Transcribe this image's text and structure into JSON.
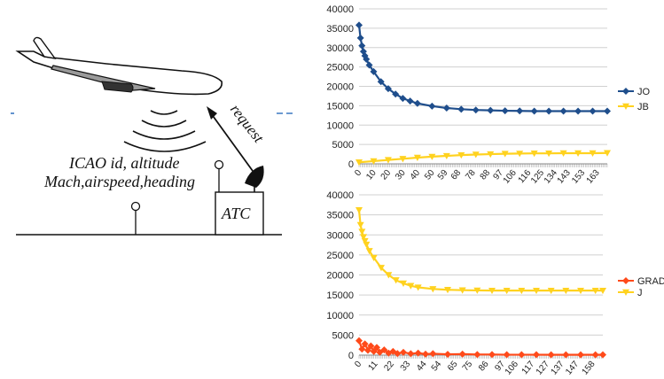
{
  "diagram": {
    "request_label": "request",
    "info_line1": "ICAO id, altitude",
    "info_line2": "Mach,airspeed,heading",
    "atc_label": "ATC"
  },
  "colors": {
    "jo": "#1f4e8c",
    "jb": "#ffd21f",
    "grad": "#ff4a1a",
    "j": "#ffd21f",
    "link": "#3b78c2"
  },
  "chart_data": [
    {
      "type": "line",
      "ylim": [
        0,
        40000
      ],
      "yticks": [
        0,
        5000,
        10000,
        15000,
        20000,
        25000,
        30000,
        35000,
        40000
      ],
      "xlim": [
        0,
        170
      ],
      "xticks": [
        0,
        10,
        20,
        30,
        40,
        50,
        59,
        68,
        78,
        88,
        97,
        106,
        116,
        125,
        134,
        143,
        153,
        163
      ],
      "legend": "right",
      "series": [
        {
          "name": "JO",
          "x": [
            0,
            1,
            2,
            3,
            4,
            5,
            7,
            10,
            15,
            20,
            25,
            30,
            35,
            40,
            50,
            60,
            70,
            80,
            90,
            100,
            110,
            120,
            130,
            140,
            150,
            160,
            170
          ],
          "y": [
            35800,
            32500,
            30500,
            29000,
            27900,
            27000,
            25500,
            23800,
            21200,
            19400,
            18000,
            16900,
            16200,
            15600,
            14900,
            14400,
            14100,
            13900,
            13800,
            13700,
            13650,
            13600,
            13600,
            13600,
            13600,
            13600,
            13600
          ]
        },
        {
          "name": "JB",
          "x": [
            0,
            10,
            20,
            30,
            40,
            50,
            60,
            70,
            80,
            90,
            100,
            110,
            120,
            130,
            140,
            150,
            160,
            170
          ],
          "y": [
            400,
            700,
            1000,
            1300,
            1600,
            1850,
            2050,
            2250,
            2400,
            2500,
            2600,
            2650,
            2700,
            2700,
            2750,
            2750,
            2750,
            2800
          ]
        }
      ]
    },
    {
      "type": "line",
      "ylim": [
        0,
        40000
      ],
      "yticks": [
        0,
        5000,
        10000,
        15000,
        20000,
        25000,
        30000,
        35000,
        40000
      ],
      "xlim": [
        0,
        165
      ],
      "xticks": [
        0,
        11,
        22,
        33,
        44,
        54,
        65,
        75,
        86,
        97,
        106,
        117,
        127,
        137,
        147,
        158
      ],
      "legend": "right",
      "series": [
        {
          "name": "GRAD",
          "x": [
            0,
            2,
            4,
            6,
            8,
            10,
            12,
            14,
            17,
            20,
            23,
            26,
            30,
            35,
            40,
            45,
            50,
            60,
            70,
            80,
            90,
            100,
            110,
            120,
            130,
            140,
            150,
            160,
            165
          ],
          "y": [
            3600,
            1500,
            2800,
            1200,
            2300,
            900,
            1900,
            700,
            1300,
            500,
            900,
            400,
            700,
            350,
            500,
            250,
            350,
            200,
            250,
            150,
            150,
            100,
            100,
            100,
            80,
            80,
            80,
            80,
            80
          ]
        },
        {
          "name": "J",
          "x": [
            0,
            1,
            2,
            3,
            4,
            5,
            7,
            10,
            15,
            20,
            25,
            30,
            35,
            40,
            50,
            60,
            70,
            80,
            90,
            100,
            110,
            120,
            130,
            140,
            150,
            160,
            165
          ],
          "y": [
            36200,
            32500,
            30800,
            29500,
            28500,
            27600,
            26000,
            24300,
            21800,
            20000,
            18700,
            17900,
            17300,
            16900,
            16500,
            16300,
            16200,
            16150,
            16100,
            16100,
            16100,
            16100,
            16100,
            16100,
            16100,
            16100,
            16100
          ]
        }
      ]
    }
  ]
}
